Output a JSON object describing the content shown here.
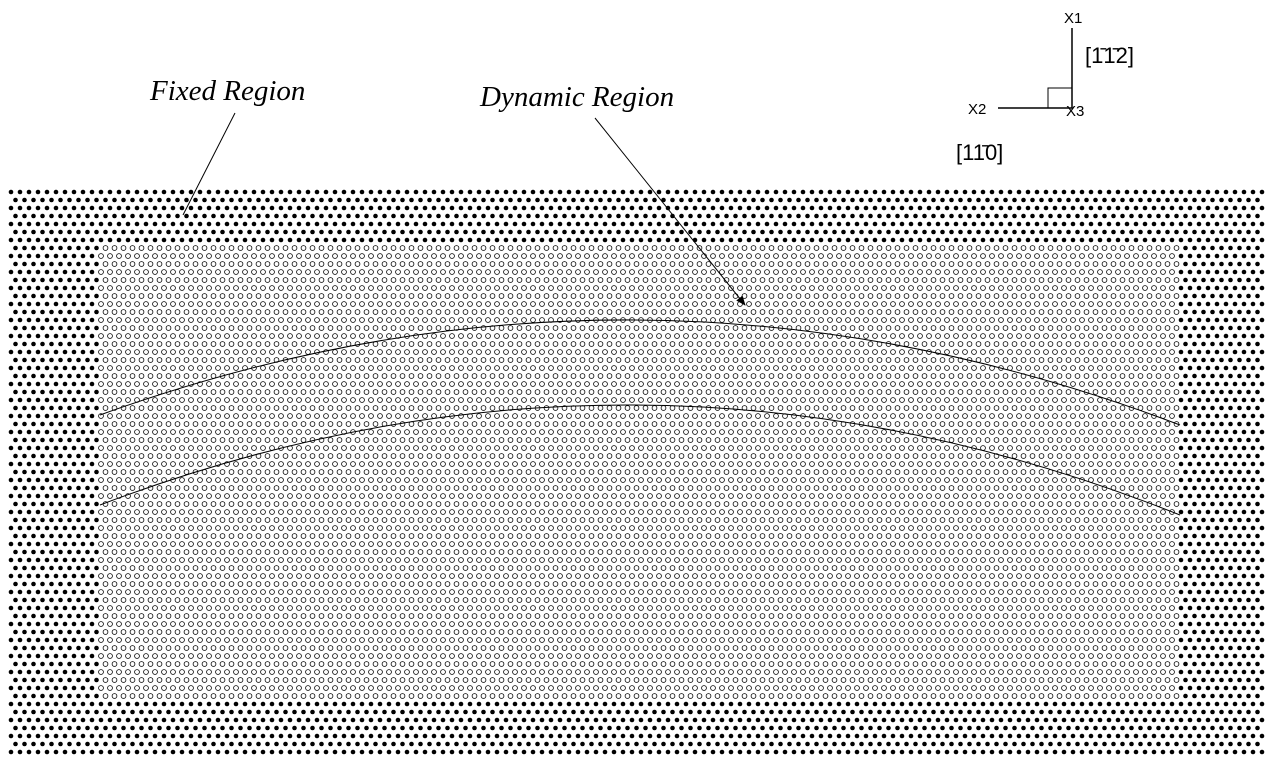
{
  "labels": {
    "fixed_region": "Fixed Region",
    "dynamic_region": "Dynamic Region"
  },
  "axes": {
    "x1": "X1",
    "x2": "X2",
    "x3": "X3",
    "x1_direction": "[1̄1̄2]",
    "x2_direction": "[11̄0]"
  }
}
